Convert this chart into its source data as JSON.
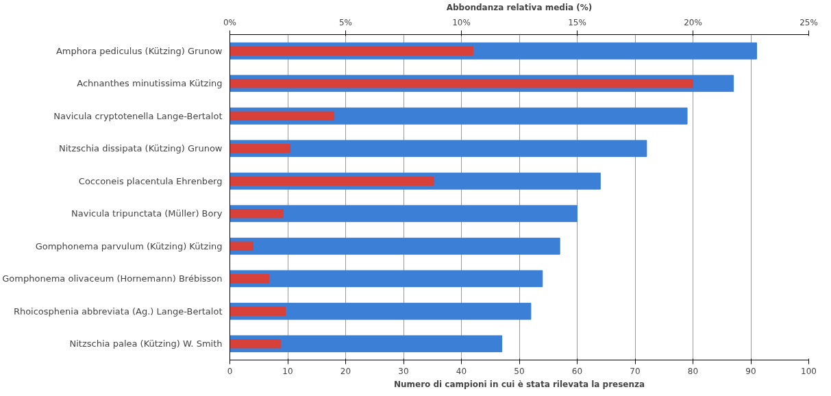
{
  "chart_data": {
    "type": "bar",
    "orientation": "horizontal",
    "categories": [
      "Amphora pediculus (Kützing) Grunow",
      "Achnanthes minutissima Kützing",
      "Navicula cryptotenella Lange-Bertalot",
      "Nitzschia dissipata (Kützing) Grunow",
      "Cocconeis placentula Ehrenberg",
      "Navicula tripunctata (Müller) Bory",
      "Gomphonema parvulum (Kützing) Kützing",
      "Gomphonema olivaceum (Hornemann) Brébisson",
      "Rhoicosphenia abbreviata (Ag.) Lange-Bertalot",
      "Nitzschia palea (Kützing) W. Smith"
    ],
    "series": [
      {
        "color": "#3c7fd6",
        "values": [
          91,
          87,
          79,
          72,
          64,
          60,
          57,
          54,
          52,
          47
        ]
      },
      {
        "color": "#d8403a",
        "axis": "x2",
        "values": [
          10.5,
          20.0,
          4.5,
          2.6,
          8.8,
          2.3,
          1.0,
          1.7,
          2.4,
          2.2
        ]
      }
    ],
    "xlabel": "Numero di campioni in cui è stata rilevata la presenza",
    "x2label": "Abbondanza relativa media (%)",
    "xlim": [
      0,
      100
    ],
    "xticks": [
      0,
      10,
      20,
      30,
      40,
      50,
      60,
      70,
      80,
      90,
      100
    ],
    "x2lim": [
      0,
      25
    ],
    "x2ticks": [
      {
        "value": 0,
        "label": "0%"
      },
      {
        "value": 5,
        "label": "5%"
      },
      {
        "value": 10,
        "label": "10%"
      },
      {
        "value": 15,
        "label": "15%"
      },
      {
        "value": 20,
        "label": "20%"
      },
      {
        "value": 25,
        "label": "25%"
      }
    ],
    "grid": "x"
  }
}
